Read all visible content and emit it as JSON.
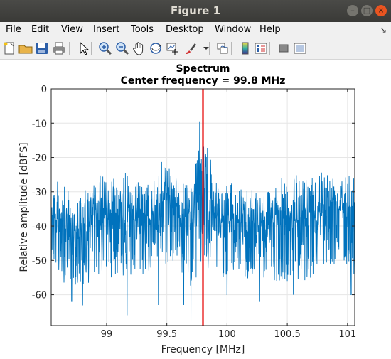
{
  "window": {
    "title": "Figure 1"
  },
  "menu": [
    {
      "label": "File",
      "ul": "F",
      "rest": "ile"
    },
    {
      "label": "Edit",
      "ul": "E",
      "rest": "dit"
    },
    {
      "label": "View",
      "ul": "V",
      "rest": "iew"
    },
    {
      "label": "Insert",
      "ul": "I",
      "rest": "nsert"
    },
    {
      "label": "Tools",
      "ul": "T",
      "rest": "ools"
    },
    {
      "label": "Desktop",
      "ul": "D",
      "rest": "esktop"
    },
    {
      "label": "Window",
      "ul": "W",
      "rest": "indow"
    },
    {
      "label": "Help",
      "ul": "H",
      "rest": "elp"
    }
  ],
  "toolbar_icons": [
    "new-figure-icon",
    "open-folder-icon",
    "save-icon",
    "print-icon",
    "select-arrow-icon",
    "zoom-in-icon",
    "zoom-out-icon",
    "pan-hand-icon",
    "rotate-3d-icon",
    "data-cursor-icon",
    "brush-icon",
    "brush-dropdown-icon",
    "link-plot-icon",
    "colorbar-icon",
    "legend-icon",
    "hide-plot-tools-icon",
    "show-plot-tools-icon"
  ],
  "colors": {
    "series": "#0072bd",
    "marker": "#e60000",
    "axis": "#262626",
    "grid": "#e6e6e6"
  },
  "chart_data": {
    "type": "line",
    "title": "Spectrum",
    "subtitle": "Center frequency = 99.8 MHz",
    "xlabel": "Frequency [MHz]",
    "ylabel": "Relative amplitude [dBFS]",
    "xlim": [
      98.54,
      101.06
    ],
    "ylim": [
      -69,
      0
    ],
    "xticks": [
      99,
      99.5,
      100,
      100.5,
      101
    ],
    "xtick_labels": [
      "99",
      "99.5",
      "100",
      "100.5",
      "101"
    ],
    "yticks": [
      0,
      -10,
      -20,
      -30,
      -40,
      -50,
      -60
    ],
    "ytick_labels": [
      "0",
      "-10",
      "-20",
      "-30",
      "-40",
      "-50",
      "-60"
    ],
    "grid": true,
    "center_marker": {
      "x": 99.8,
      "color": "#e60000"
    },
    "series": [
      {
        "style": "noise-spectrum",
        "color": "#0072bd",
        "envelope": [
          {
            "x": 98.54,
            "upper": -24,
            "lower": -50
          },
          {
            "x": 98.6,
            "upper": -26,
            "lower": -57
          },
          {
            "x": 98.7,
            "upper": -30,
            "lower": -56
          },
          {
            "x": 98.8,
            "upper": -30,
            "lower": -59
          },
          {
            "x": 98.9,
            "upper": -26,
            "lower": -55
          },
          {
            "x": 99.0,
            "upper": -23,
            "lower": -55
          },
          {
            "x": 99.1,
            "upper": -22,
            "lower": -55
          },
          {
            "x": 99.2,
            "upper": -24,
            "lower": -56
          },
          {
            "x": 99.3,
            "upper": -27,
            "lower": -55
          },
          {
            "x": 99.4,
            "upper": -25,
            "lower": -53
          },
          {
            "x": 99.5,
            "upper": -18,
            "lower": -52
          },
          {
            "x": 99.6,
            "upper": -25,
            "lower": -54
          },
          {
            "x": 99.7,
            "upper": -28,
            "lower": -58
          },
          {
            "x": 99.78,
            "upper": -7,
            "lower": -55
          },
          {
            "x": 99.82,
            "upper": -10,
            "lower": -56
          },
          {
            "x": 99.9,
            "upper": -27,
            "lower": -55
          },
          {
            "x": 100.0,
            "upper": -27,
            "lower": -55
          },
          {
            "x": 100.1,
            "upper": -28,
            "lower": -54
          },
          {
            "x": 100.2,
            "upper": -26,
            "lower": -58
          },
          {
            "x": 100.3,
            "upper": -28,
            "lower": -56
          },
          {
            "x": 100.4,
            "upper": -26,
            "lower": -56
          },
          {
            "x": 100.5,
            "upper": -25,
            "lower": -56
          },
          {
            "x": 100.6,
            "upper": -24,
            "lower": -57
          },
          {
            "x": 100.7,
            "upper": -22,
            "lower": -55
          },
          {
            "x": 100.8,
            "upper": -21,
            "lower": -54
          },
          {
            "x": 100.9,
            "upper": -23,
            "lower": -52
          },
          {
            "x": 101.0,
            "upper": -19,
            "lower": -53
          },
          {
            "x": 101.06,
            "upper": -23,
            "lower": -55
          }
        ],
        "deep_dips": [
          {
            "x": 98.71,
            "y": -62
          },
          {
            "x": 98.8,
            "y": -63
          },
          {
            "x": 99.17,
            "y": -66
          },
          {
            "x": 99.43,
            "y": -63
          },
          {
            "x": 99.64,
            "y": -63
          },
          {
            "x": 99.7,
            "y": -68
          },
          {
            "x": 100.0,
            "y": -60
          },
          {
            "x": 100.27,
            "y": -62
          },
          {
            "x": 100.55,
            "y": -60
          },
          {
            "x": 101.03,
            "y": -60
          }
        ]
      }
    ]
  }
}
